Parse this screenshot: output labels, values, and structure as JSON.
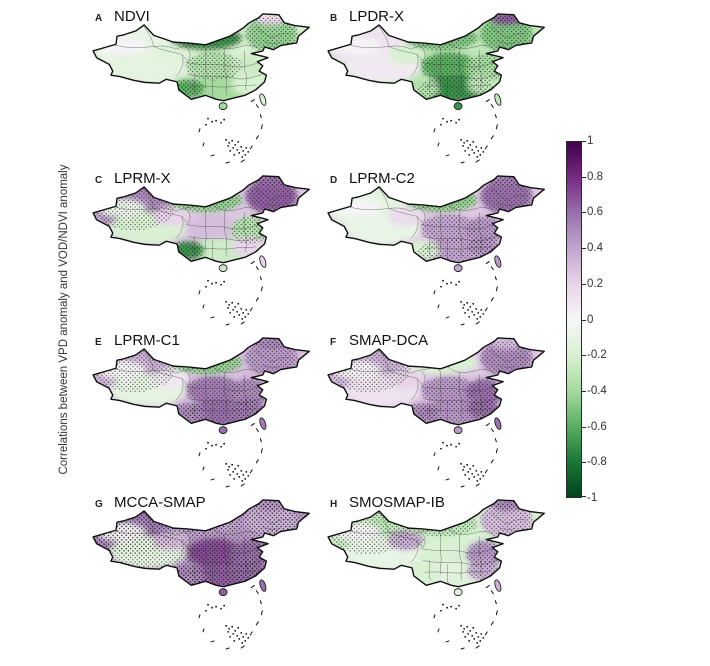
{
  "figure": {
    "background": "#ffffff",
    "kind": "multi-panel correlation maps of China"
  },
  "chart_data": {
    "type": "heatmap",
    "region_shown": "China",
    "title": "",
    "colorbar": {
      "label": "Correlations between VPD anomaly and VOD/NDVI anomaly",
      "orientation": "vertical",
      "range": [
        -1,
        1
      ],
      "ticks": [
        1,
        0.8,
        0.6,
        0.4,
        0.2,
        0,
        -0.2,
        -0.4,
        -0.6,
        -0.8,
        -1
      ],
      "colormap_stops": [
        {
          "value": 1,
          "color": "#40004b"
        },
        {
          "value": 0.8,
          "color": "#762a83"
        },
        {
          "value": 0.6,
          "color": "#9970ab"
        },
        {
          "value": 0.4,
          "color": "#c2a5cf"
        },
        {
          "value": 0.2,
          "color": "#e7d4e8"
        },
        {
          "value": 0,
          "color": "#f7f7f7"
        },
        {
          "value": -0.2,
          "color": "#d9f0d3"
        },
        {
          "value": -0.4,
          "color": "#a6dba0"
        },
        {
          "value": -0.6,
          "color": "#5aae61"
        },
        {
          "value": -0.8,
          "color": "#1b7837"
        },
        {
          "value": -1,
          "color": "#00441b"
        }
      ]
    },
    "panels": [
      {
        "label": "A",
        "name": "NDVI",
        "regions": {
          "base": -0.2,
          "northwest": -0.1,
          "tarim_basin": 0.02,
          "tibet": -0.12,
          "qinghai": -0.15,
          "north_central": -0.7,
          "northeast": -0.45,
          "ne_tip": 0.15,
          "central": -0.35,
          "east": -0.25,
          "south": -0.4,
          "southwest": -0.6,
          "southeast": -0.2
        },
        "significant_regions": [
          "north_central",
          "northeast",
          "central",
          "southwest"
        ]
      },
      {
        "label": "B",
        "name": "LPDR-X",
        "regions": {
          "base": -0.3,
          "northwest": 0.12,
          "tarim_basin": 0.03,
          "tibet": 0.08,
          "qinghai": -0.2,
          "north_central": -0.5,
          "northeast": -0.5,
          "ne_tip": 0.65,
          "central": -0.6,
          "east": -0.4,
          "south": -0.7,
          "southwest": -0.35,
          "southeast": -0.3
        },
        "significant_regions": [
          "north_central",
          "northeast",
          "ne_tip",
          "central",
          "east",
          "south"
        ]
      },
      {
        "label": "C",
        "name": "LPRM-X",
        "regions": {
          "base": 0.25,
          "northwest": 0.5,
          "tarim_basin": -0.08,
          "tibet": -0.2,
          "qinghai": 0.2,
          "north_central": -0.45,
          "northeast": 0.65,
          "ne_tip": 0.6,
          "central": 0.3,
          "east": -0.35,
          "south": -0.25,
          "southwest": -0.7,
          "southeast": 0.2
        },
        "significant_regions": [
          "northwest",
          "north_central",
          "northeast",
          "ne_tip",
          "east",
          "southwest"
        ]
      },
      {
        "label": "D",
        "name": "LPRM-C2",
        "regions": {
          "base": 0.25,
          "northwest": -0.12,
          "tarim_basin": 0.02,
          "tibet": -0.1,
          "qinghai": 0.15,
          "north_central": -0.45,
          "northeast": 0.6,
          "ne_tip": 0.55,
          "central": 0.4,
          "east": 0.45,
          "south": 0.4,
          "southwest": -0.2,
          "southeast": 0.45
        },
        "significant_regions": [
          "north_central",
          "northeast",
          "ne_tip",
          "central",
          "east",
          "south",
          "southeast"
        ]
      },
      {
        "label": "E",
        "name": "LPRM-C1",
        "regions": {
          "base": 0.3,
          "northwest": 0.35,
          "tarim_basin": 0.02,
          "tibet": -0.12,
          "qinghai": 0.1,
          "north_central": -0.45,
          "northeast": 0.45,
          "ne_tip": 0.5,
          "central": 0.55,
          "east": 0.5,
          "south": 0.6,
          "southwest": 0.5,
          "southeast": 0.55
        },
        "significant_regions": [
          "northwest",
          "north_central",
          "northeast",
          "ne_tip",
          "central",
          "east",
          "south",
          "southwest",
          "southeast"
        ]
      },
      {
        "label": "F",
        "name": "SMAP-DCA",
        "regions": {
          "base": 0.25,
          "northwest": 0.35,
          "tarim_basin": 0.03,
          "tibet": 0.12,
          "qinghai": 0.2,
          "north_central": -0.2,
          "northeast": 0.5,
          "ne_tip": 0.3,
          "central": 0.45,
          "east": 0.6,
          "south": 0.45,
          "southwest": 0.5,
          "southeast": 0.6
        },
        "significant_regions": [
          "northwest",
          "northeast",
          "central",
          "east",
          "south",
          "southwest",
          "southeast"
        ]
      },
      {
        "label": "G",
        "name": "MCCA-SMAP",
        "regions": {
          "base": 0.45,
          "northwest": 0.55,
          "tarim_basin": 0.05,
          "tibet": -0.12,
          "qinghai": 0.3,
          "north_central": 0.4,
          "northeast": 0.35,
          "ne_tip": 0.45,
          "central": 0.7,
          "east": 0.6,
          "south": 0.65,
          "southwest": 0.5,
          "southeast": 0.6
        },
        "significant_regions": [
          "base",
          "northwest",
          "north_central",
          "northeast",
          "ne_tip",
          "central",
          "east",
          "south",
          "southwest",
          "southeast"
        ]
      },
      {
        "label": "H",
        "name": "SMOSMAP-IB",
        "regions": {
          "base": -0.2,
          "northwest": -0.3,
          "tarim_basin": 0.02,
          "tibet": -0.1,
          "qinghai": 0.35,
          "north_central": -0.3,
          "northeast": 0.3,
          "ne_tip": 0.5,
          "central": -0.2,
          "east": 0.45,
          "south": -0.15,
          "southwest": -0.2,
          "southeast": 0.35
        },
        "significant_regions": [
          "northwest",
          "qinghai",
          "north_central",
          "northeast",
          "ne_tip",
          "east",
          "southeast"
        ]
      }
    ]
  }
}
